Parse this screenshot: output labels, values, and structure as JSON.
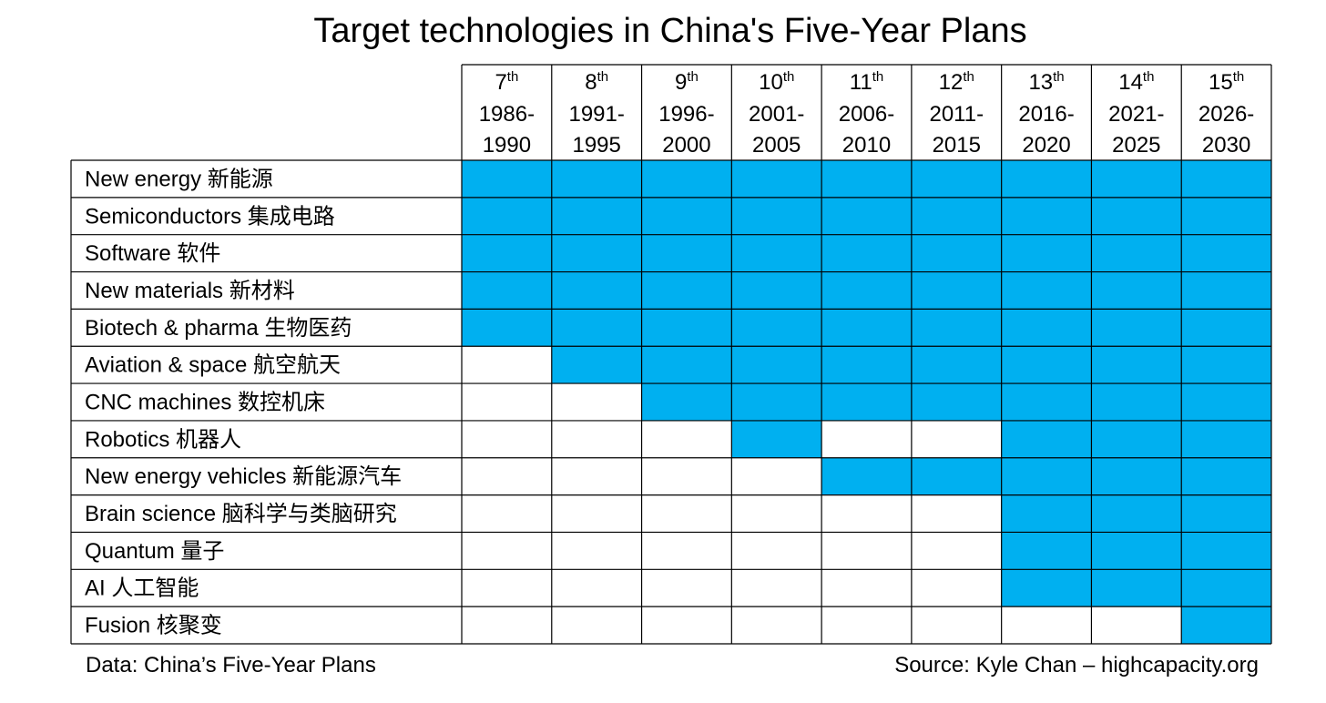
{
  "chart_data": {
    "type": "table",
    "title": "Target technologies in China's Five-Year Plans",
    "highlight_color": "#00B0F0",
    "columns": [
      {
        "ordinal": "7",
        "suffix": "th",
        "start": "1986-",
        "end": "1990"
      },
      {
        "ordinal": "8",
        "suffix": "th",
        "start": "1991-",
        "end": "1995"
      },
      {
        "ordinal": "9",
        "suffix": "th",
        "start": "1996-",
        "end": "2000"
      },
      {
        "ordinal": "10",
        "suffix": "th",
        "start": "2001-",
        "end": "2005"
      },
      {
        "ordinal": "11",
        "suffix": "th",
        "start": "2006-",
        "end": "2010"
      },
      {
        "ordinal": "12",
        "suffix": "th",
        "start": "2011-",
        "end": "2015"
      },
      {
        "ordinal": "13",
        "suffix": "th",
        "start": "2016-",
        "end": "2020"
      },
      {
        "ordinal": "14",
        "suffix": "th",
        "start": "2021-",
        "end": "2025"
      },
      {
        "ordinal": "15",
        "suffix": "th",
        "start": "2026-",
        "end": "2030"
      }
    ],
    "rows": [
      {
        "label": "New energy 新能源",
        "targeted": [
          1,
          1,
          1,
          1,
          1,
          1,
          1,
          1,
          1
        ]
      },
      {
        "label": "Semiconductors 集成电路",
        "targeted": [
          1,
          1,
          1,
          1,
          1,
          1,
          1,
          1,
          1
        ]
      },
      {
        "label": "Software 软件",
        "targeted": [
          1,
          1,
          1,
          1,
          1,
          1,
          1,
          1,
          1
        ]
      },
      {
        "label": "New materials 新材料",
        "targeted": [
          1,
          1,
          1,
          1,
          1,
          1,
          1,
          1,
          1
        ]
      },
      {
        "label": "Biotech & pharma 生物医药",
        "targeted": [
          1,
          1,
          1,
          1,
          1,
          1,
          1,
          1,
          1
        ]
      },
      {
        "label": "Aviation & space 航空航天",
        "targeted": [
          0,
          1,
          1,
          1,
          1,
          1,
          1,
          1,
          1
        ]
      },
      {
        "label": "CNC machines 数控机床",
        "targeted": [
          0,
          0,
          1,
          1,
          1,
          1,
          1,
          1,
          1
        ]
      },
      {
        "label": "Robotics 机器人",
        "targeted": [
          0,
          0,
          0,
          1,
          0,
          0,
          1,
          1,
          1
        ]
      },
      {
        "label": "New energy vehicles 新能源汽车",
        "targeted": [
          0,
          0,
          0,
          0,
          1,
          1,
          1,
          1,
          1
        ]
      },
      {
        "label": "Brain science 脑科学与类脑研究",
        "targeted": [
          0,
          0,
          0,
          0,
          0,
          0,
          1,
          1,
          1
        ]
      },
      {
        "label": "Quantum 量子",
        "targeted": [
          0,
          0,
          0,
          0,
          0,
          0,
          1,
          1,
          1
        ]
      },
      {
        "label": "AI 人工智能",
        "targeted": [
          0,
          0,
          0,
          0,
          0,
          0,
          1,
          1,
          1
        ]
      },
      {
        "label": "Fusion 核聚变",
        "targeted": [
          0,
          0,
          0,
          0,
          0,
          0,
          0,
          0,
          1
        ]
      }
    ]
  },
  "footer": {
    "data_note": "Data: China’s Five-Year Plans",
    "source": "Source: Kyle Chan – highcapacity.org"
  }
}
